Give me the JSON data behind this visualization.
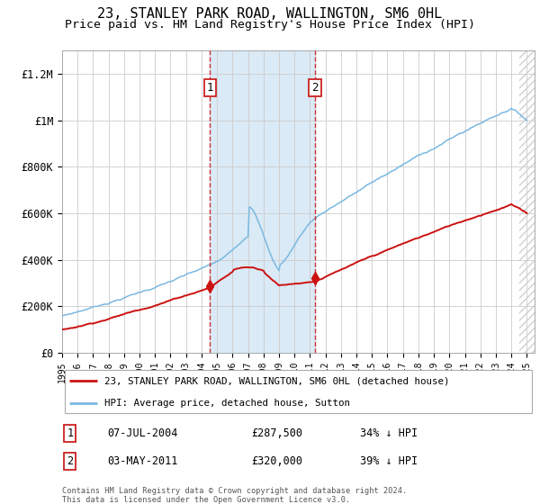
{
  "title": "23, STANLEY PARK ROAD, WALLINGTON, SM6 0HL",
  "subtitle": "Price paid vs. HM Land Registry's House Price Index (HPI)",
  "ylim": [
    0,
    1300000
  ],
  "yticks": [
    0,
    200000,
    400000,
    600000,
    800000,
    1000000,
    1200000
  ],
  "ytick_labels": [
    "£0",
    "£200K",
    "£400K",
    "£600K",
    "£800K",
    "£1M",
    "£1.2M"
  ],
  "hpi_color": "#7ab8e0",
  "price_color": "#cc1111",
  "sale1_year": 2004.55,
  "sale1_price": 287500,
  "sale2_year": 2011.33,
  "sale2_price": 320000,
  "shaded_region_color": "#daeaf6",
  "background_color": "#ffffff",
  "grid_color": "#cccccc",
  "legend_label_red": "23, STANLEY PARK ROAD, WALLINGTON, SM6 0HL (detached house)",
  "legend_label_blue": "HPI: Average price, detached house, Sutton",
  "note1_date": "07-JUL-2004",
  "note1_price": "£287,500",
  "note1_pct": "34% ↓ HPI",
  "note2_date": "03-MAY-2011",
  "note2_price": "£320,000",
  "note2_pct": "39% ↓ HPI",
  "footer": "Contains HM Land Registry data © Crown copyright and database right 2024.\nThis data is licensed under the Open Government Licence v3.0.",
  "title_fontsize": 11,
  "subtitle_fontsize": 9.5
}
